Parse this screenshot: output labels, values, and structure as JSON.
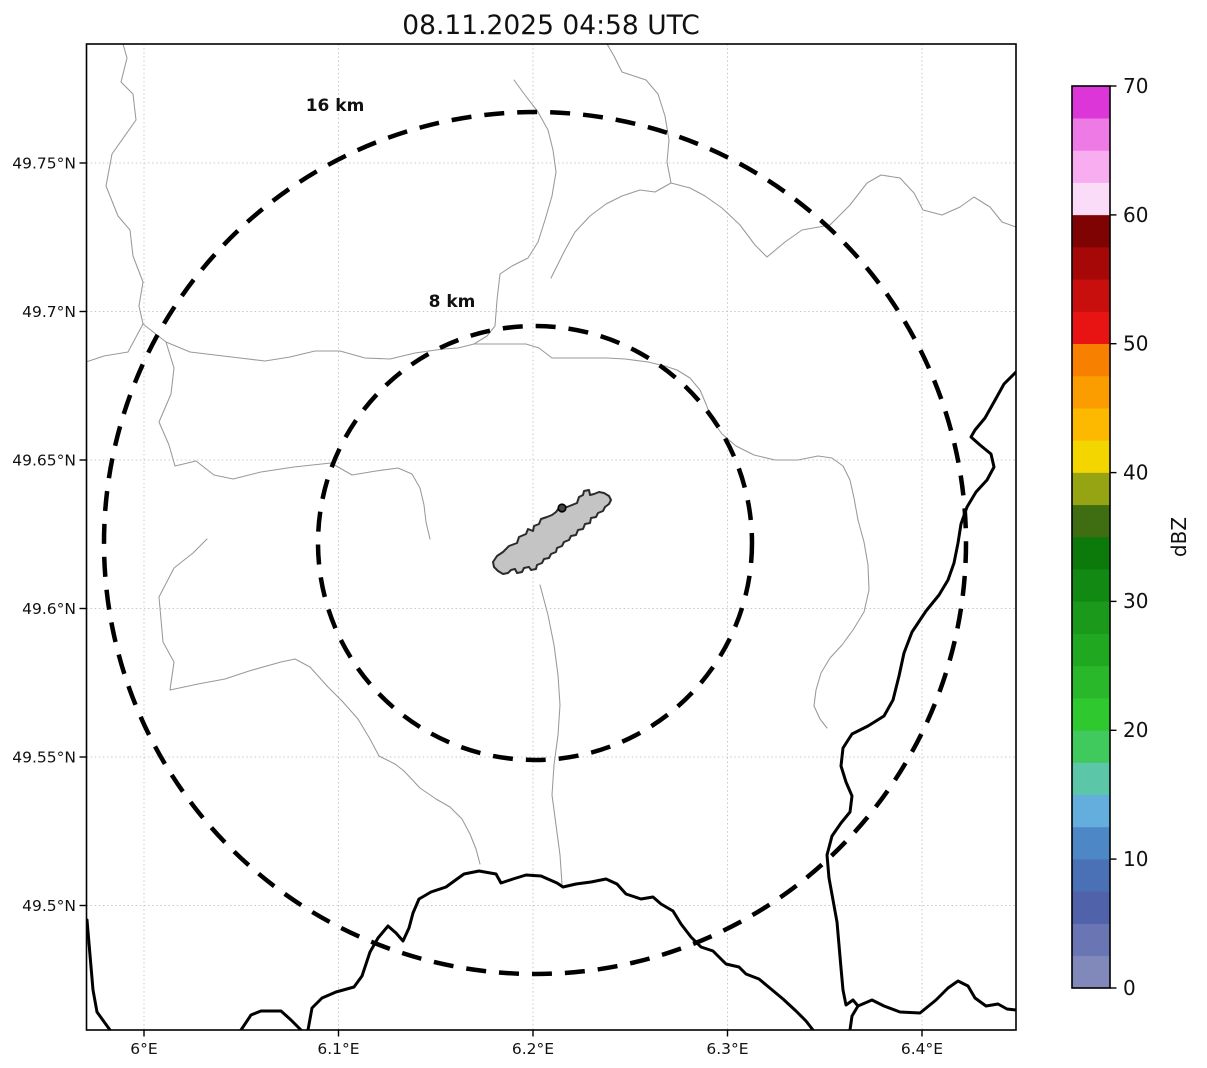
{
  "title": "08.11.2025 04:58 UTC",
  "map": {
    "range_rings": {
      "outer_label": "16 km",
      "inner_label": "8 km"
    },
    "axes": {
      "x_tick_labels": [
        "6°E",
        "6.1°E",
        "6.2°E",
        "6.3°E",
        "6.4°E"
      ],
      "y_tick_labels": [
        "49.75°N",
        "49.7°N",
        "49.65°N",
        "49.6°N",
        "49.55°N",
        "49.5°N"
      ]
    }
  },
  "colorbar": {
    "label": "dBZ",
    "min": 0,
    "max": 70,
    "step_dbz": 2.5,
    "tick_labels_bottom_to_top": [
      "0",
      "10",
      "20",
      "30",
      "40",
      "50",
      "60",
      "70"
    ],
    "cell_colors_bottom_to_top": [
      "#8089b9",
      "#6a75b4",
      "#5062a9",
      "#4a70b5",
      "#4e87c6",
      "#63aedd",
      "#5cc6a8",
      "#40ca5e",
      "#2fc82f",
      "#29b829",
      "#21a821",
      "#1a991a",
      "#128912",
      "#0b7a0b",
      "#3f6d12",
      "#96a312",
      "#f3d500",
      "#fcb900",
      "#fb9d00",
      "#f78000",
      "#e81414",
      "#c90e0e",
      "#a60808",
      "#7f0303",
      "#fbdcf8",
      "#f7adf0",
      "#ee7ae6",
      "#dc36d8"
    ]
  },
  "colors": {
    "background": "#ffffff",
    "map_frame": "#000000",
    "grid_line": "#c9c9c9",
    "admin_boundary": "#999999",
    "river_border": "#000000",
    "range_ring": "#000000",
    "airport_fill": "#c4c4c4",
    "airport_stroke": "#2b2b2b"
  }
}
